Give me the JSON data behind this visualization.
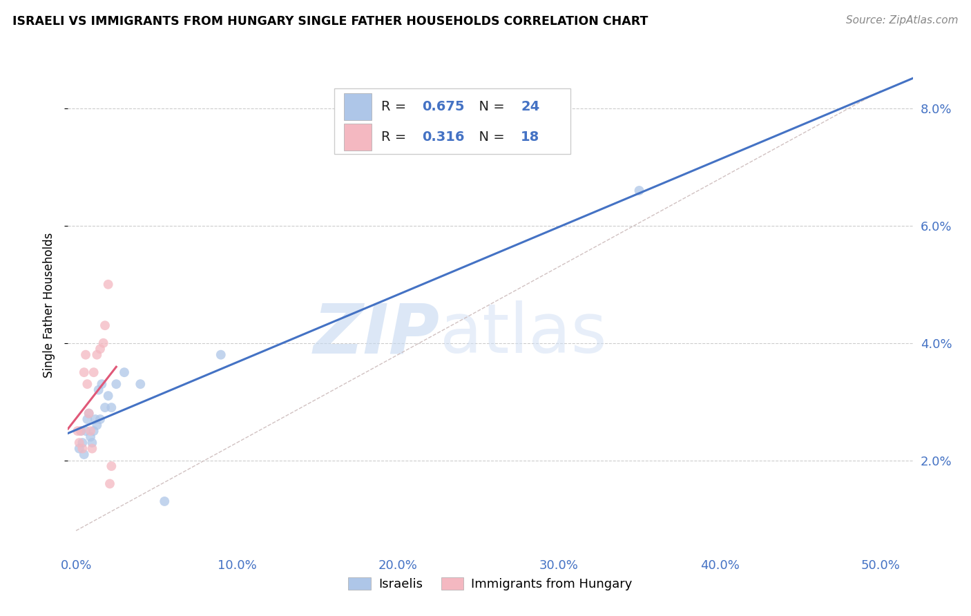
{
  "title": "ISRAELI VS IMMIGRANTS FROM HUNGARY SINGLE FATHER HOUSEHOLDS CORRELATION CHART",
  "source": "Source: ZipAtlas.com",
  "xlabel_ticks": [
    "0.0%",
    "10.0%",
    "20.0%",
    "30.0%",
    "40.0%",
    "50.0%"
  ],
  "xlabel_vals": [
    0.0,
    0.1,
    0.2,
    0.3,
    0.4,
    0.5
  ],
  "ylabel_ticks": [
    "2.0%",
    "4.0%",
    "6.0%",
    "8.0%"
  ],
  "ylabel_vals": [
    0.02,
    0.04,
    0.06,
    0.08
  ],
  "ylabel_label": "Single Father Households",
  "xlim": [
    -0.005,
    0.52
  ],
  "ylim": [
    0.005,
    0.088
  ],
  "watermark_zip": "ZIP",
  "watermark_atlas": "atlas",
  "israeli_color": "#aec6e8",
  "hungary_color": "#f4b8c1",
  "israeli_R": "0.675",
  "israeli_N": "24",
  "hungary_R": "0.316",
  "hungary_N": "18",
  "israeli_line_color": "#4472c4",
  "hungary_line_color": "#e05878",
  "diagonal_color": "#ccbbbb",
  "israeli_scatter_x": [
    0.002,
    0.003,
    0.004,
    0.005,
    0.006,
    0.007,
    0.008,
    0.009,
    0.01,
    0.011,
    0.012,
    0.013,
    0.014,
    0.015,
    0.016,
    0.018,
    0.02,
    0.022,
    0.025,
    0.03,
    0.04,
    0.055,
    0.09,
    0.35
  ],
  "israeli_scatter_y": [
    0.022,
    0.025,
    0.023,
    0.021,
    0.025,
    0.027,
    0.028,
    0.024,
    0.023,
    0.025,
    0.027,
    0.026,
    0.032,
    0.027,
    0.033,
    0.029,
    0.031,
    0.029,
    0.033,
    0.035,
    0.033,
    0.013,
    0.038,
    0.066
  ],
  "hungary_scatter_x": [
    0.001,
    0.002,
    0.003,
    0.004,
    0.005,
    0.006,
    0.007,
    0.008,
    0.009,
    0.01,
    0.011,
    0.013,
    0.015,
    0.017,
    0.018,
    0.02,
    0.021,
    0.022
  ],
  "hungary_scatter_y": [
    0.025,
    0.023,
    0.025,
    0.022,
    0.035,
    0.038,
    0.033,
    0.028,
    0.025,
    0.022,
    0.035,
    0.038,
    0.039,
    0.04,
    0.043,
    0.05,
    0.016,
    0.019
  ],
  "legend_israelis": "Israelis",
  "legend_hungary": "Immigrants from Hungary",
  "marker_size": 100,
  "isr_line_x": [
    -0.005,
    0.52
  ],
  "hun_line_x": [
    -0.005,
    0.025
  ],
  "diag_line_x": [
    0.0,
    0.5
  ],
  "diag_line_y": [
    0.008,
    0.083
  ]
}
